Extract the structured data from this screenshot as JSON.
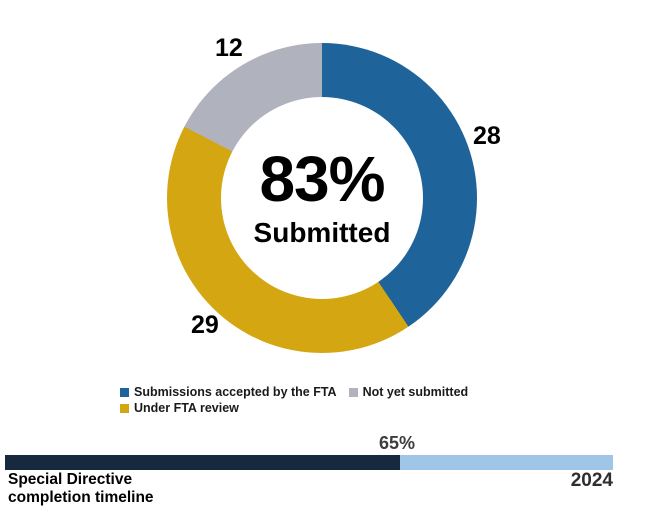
{
  "chart_data": {
    "type": "pie",
    "donut": true,
    "center_value": "83%",
    "center_label": "Submitted",
    "segments": [
      {
        "label": "Submissions accepted by the FTA",
        "value": 28,
        "color": "#1F639B"
      },
      {
        "label": "Under FTA review",
        "value": 29,
        "color": "#D4A712"
      },
      {
        "label": "Not yet submitted",
        "value": 12,
        "color": "#B0B3BD"
      }
    ],
    "legend_position": "bottom"
  },
  "timeline": {
    "percent_label": "65%",
    "percent_value": 65,
    "title": "Special Directive\ncompletion timeline",
    "end_label": "2024",
    "fill_color": "#16293E",
    "track_color": "#9FC5E8"
  }
}
